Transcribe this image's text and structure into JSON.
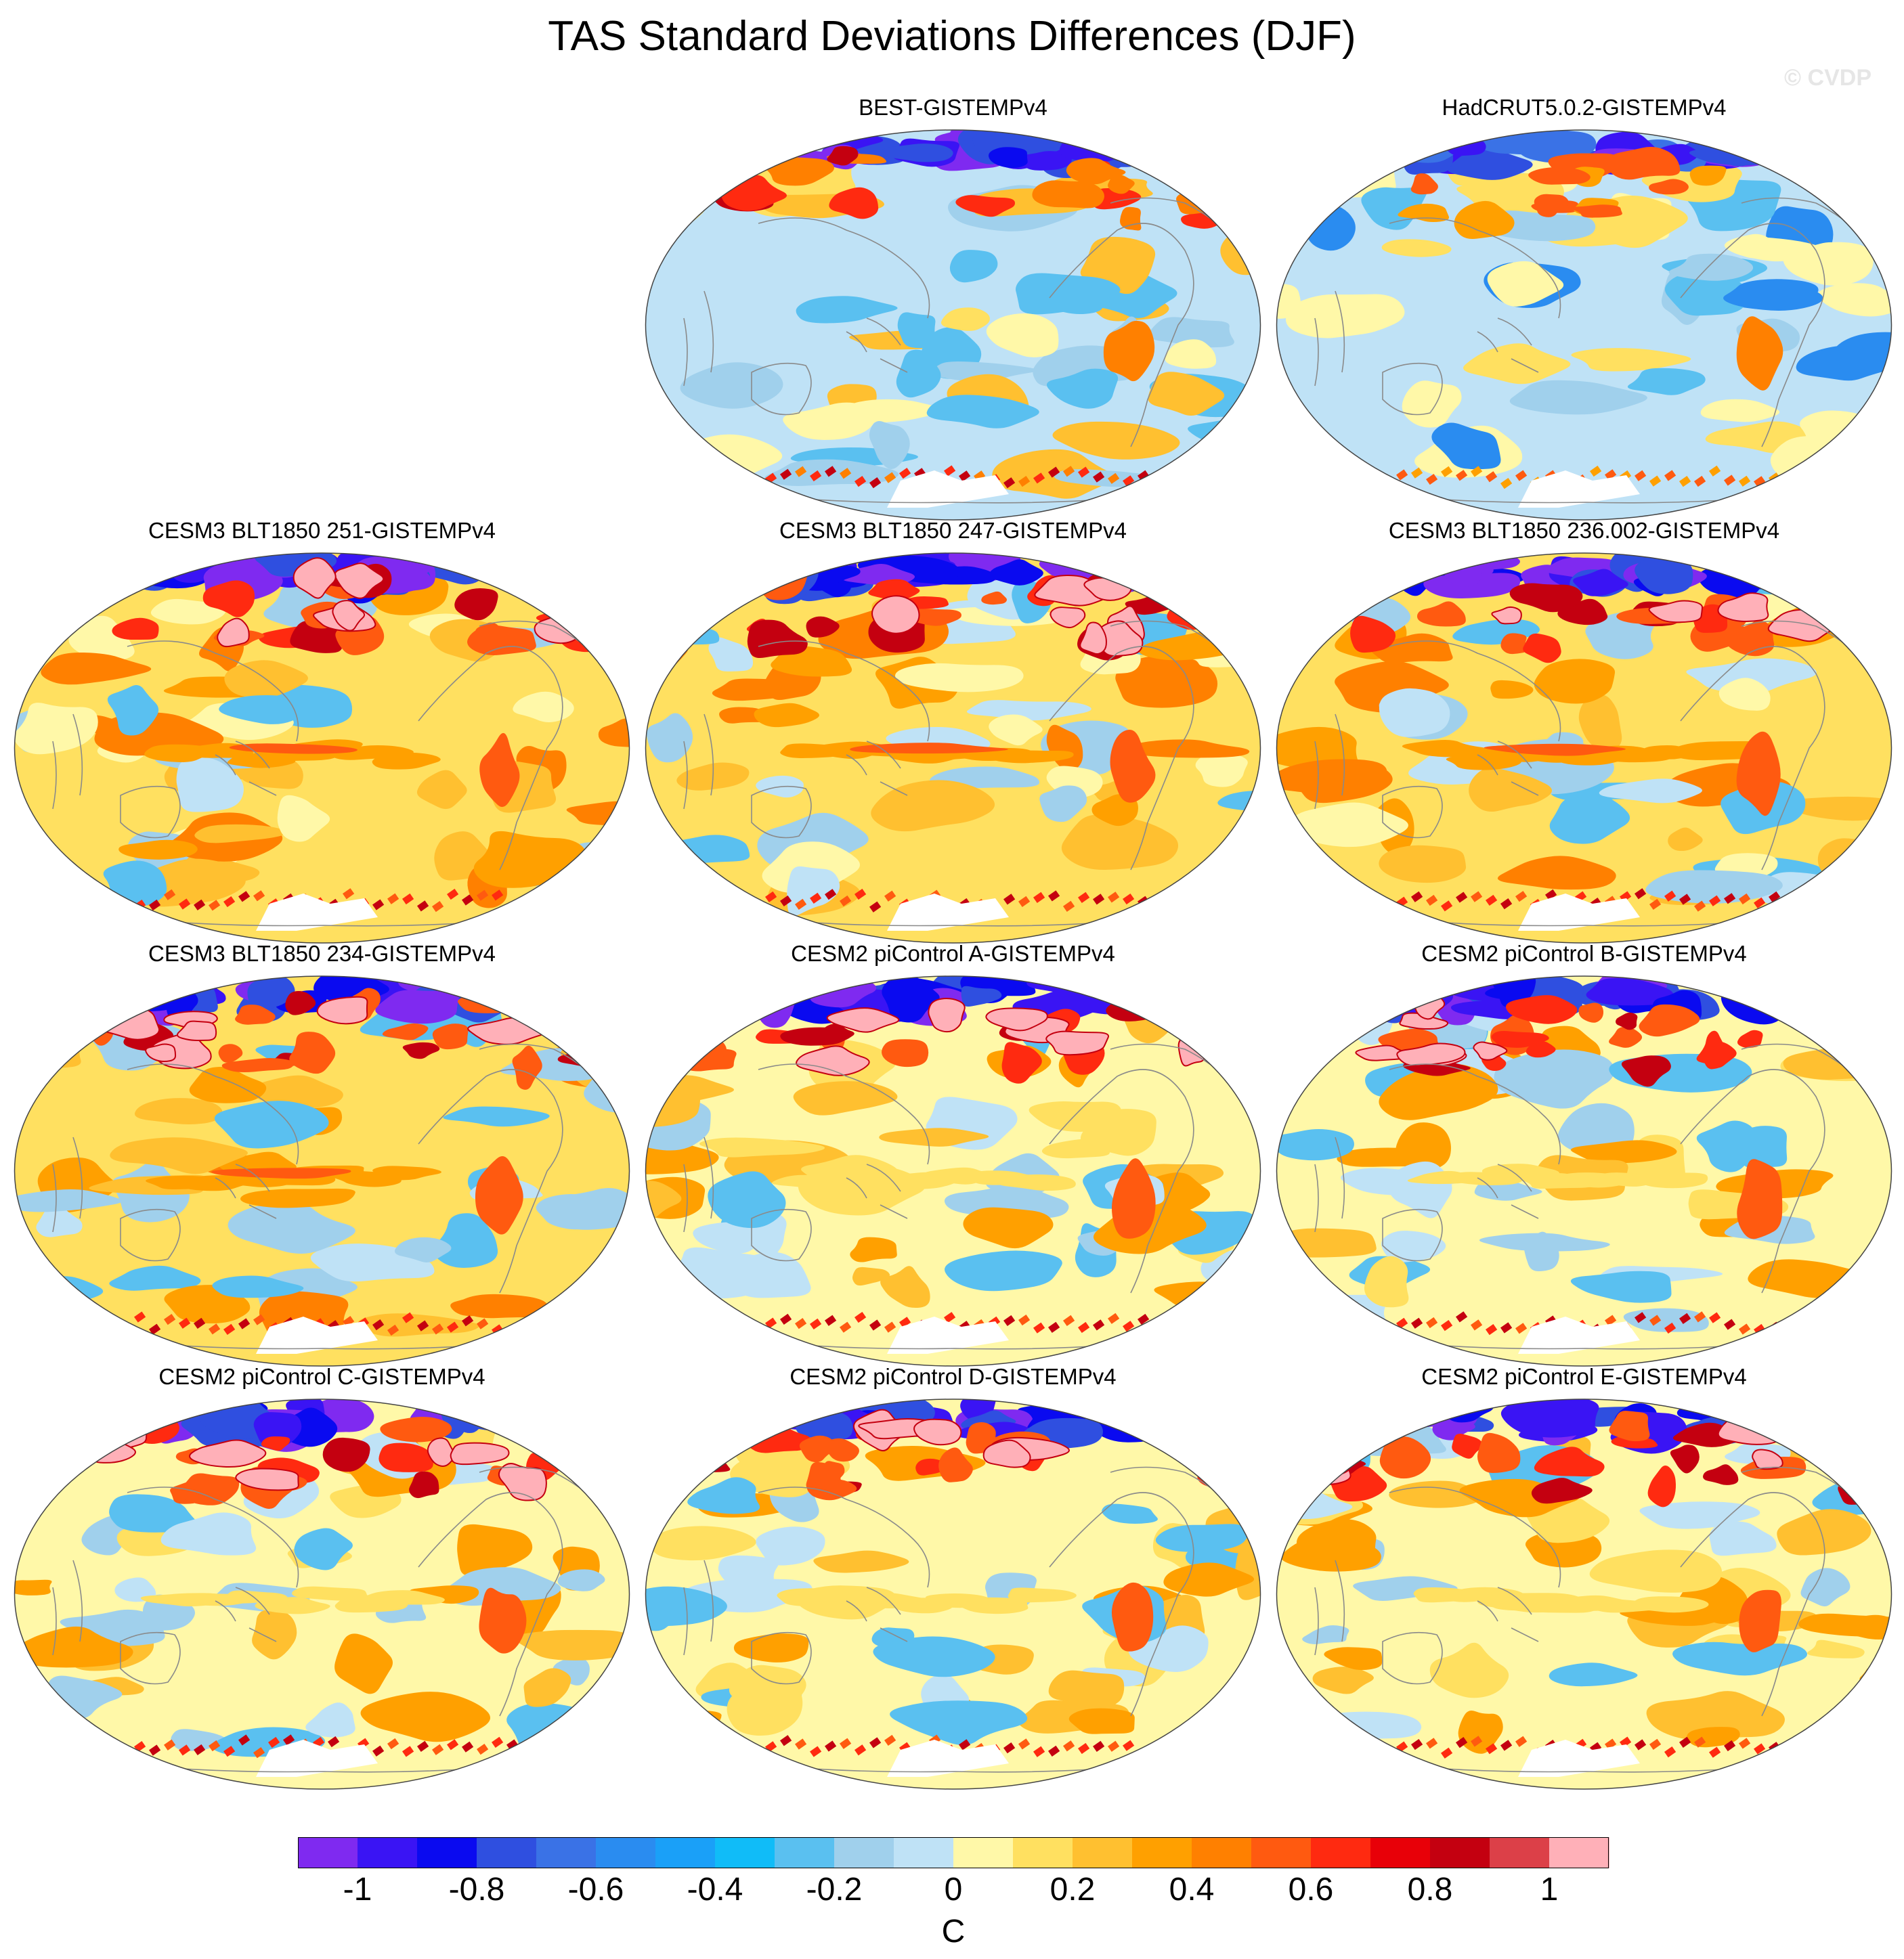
{
  "title": "TAS Standard Deviations Differences (DJF)",
  "watermark": "© CVDP",
  "panels": [
    {
      "title": "BEST-GISTEMPv4",
      "style": "obs1"
    },
    {
      "title": "HadCRUT5.0.2-GISTEMPv4",
      "style": "obs2"
    },
    {
      "title": "CESM3 BLT1850 251-GISTEMPv4",
      "style": "model"
    },
    {
      "title": "CESM3 BLT1850 247-GISTEMPv4",
      "style": "model"
    },
    {
      "title": "CESM3 BLT1850 236.002-GISTEMPv4",
      "style": "model"
    },
    {
      "title": "CESM3 BLT1850 234-GISTEMPv4",
      "style": "model"
    },
    {
      "title": "CESM2 piControl A-GISTEMPv4",
      "style": "cesm2"
    },
    {
      "title": "CESM2 piControl B-GISTEMPv4",
      "style": "cesm2"
    },
    {
      "title": "CESM2 piControl C-GISTEMPv4",
      "style": "cesm2"
    },
    {
      "title": "CESM2 piControl D-GISTEMPv4",
      "style": "cesm2"
    },
    {
      "title": "CESM2 piControl E-GISTEMPv4",
      "style": "cesm2"
    }
  ],
  "colorbar": {
    "unit": "C",
    "colors": [
      "#7f2af0",
      "#3a14f4",
      "#0a0af0",
      "#2f4fe0",
      "#3a72e6",
      "#2a8cf0",
      "#1aa0f8",
      "#10bcf8",
      "#5ac0f0",
      "#a0d0ec",
      "#bfe2f6",
      "#fff8a8",
      "#ffe060",
      "#ffc030",
      "#ffa000",
      "#ff8000",
      "#ff5a10",
      "#ff2a10",
      "#e80008",
      "#c40010",
      "#dc4048",
      "#ffb0b8"
    ],
    "tick_labels": [
      "-1",
      "-0.8",
      "-0.6",
      "-0.4",
      "-0.2",
      "0",
      "0.2",
      "0.4",
      "0.6",
      "0.8",
      "1"
    ]
  }
}
